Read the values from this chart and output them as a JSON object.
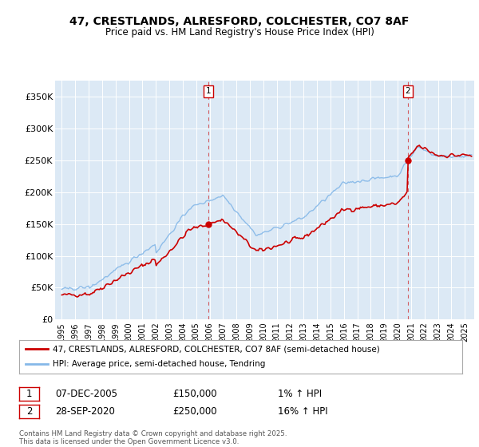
{
  "title_line1": "47, CRESTLANDS, ALRESFORD, COLCHESTER, CO7 8AF",
  "title_line2": "Price paid vs. HM Land Registry's House Price Index (HPI)",
  "legend_line1": "47, CRESTLANDS, ALRESFORD, COLCHESTER, CO7 8AF (semi-detached house)",
  "legend_line2": "HPI: Average price, semi-detached house, Tendring",
  "footnote": "Contains HM Land Registry data © Crown copyright and database right 2025.\nThis data is licensed under the Open Government Licence v3.0.",
  "annotation1_label": "1",
  "annotation1_date": "07-DEC-2005",
  "annotation1_price": "£150,000",
  "annotation1_hpi": "1% ↑ HPI",
  "annotation2_label": "2",
  "annotation2_date": "28-SEP-2020",
  "annotation2_price": "£250,000",
  "annotation2_hpi": "16% ↑ HPI",
  "bg_color": "#dce9f5",
  "hpi_color": "#85b8e8",
  "price_color": "#cc0000",
  "vline_color": "#cc0000",
  "ylim_min": 0,
  "ylim_max": 375000,
  "yticks": [
    0,
    50000,
    100000,
    150000,
    200000,
    250000,
    300000,
    350000
  ],
  "ytick_labels": [
    "£0",
    "£50K",
    "£100K",
    "£150K",
    "£200K",
    "£250K",
    "£300K",
    "£350K"
  ],
  "xlim_min": 1994.5,
  "xlim_max": 2025.7,
  "xticks": [
    1995,
    1996,
    1997,
    1998,
    1999,
    2000,
    2001,
    2002,
    2003,
    2004,
    2005,
    2006,
    2007,
    2008,
    2009,
    2010,
    2011,
    2012,
    2013,
    2014,
    2015,
    2016,
    2017,
    2018,
    2019,
    2020,
    2021,
    2022,
    2023,
    2024,
    2025
  ],
  "sale1_year": 2005.92,
  "sale1_price": 150000,
  "sale2_year": 2020.75,
  "sale2_price": 250000
}
